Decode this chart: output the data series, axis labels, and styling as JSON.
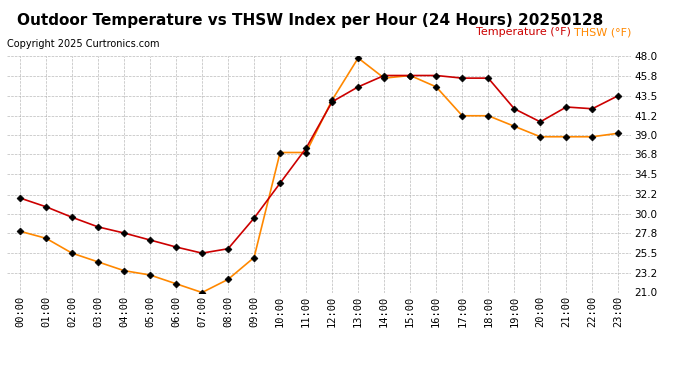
{
  "title": "Outdoor Temperature vs THSW Index per Hour (24 Hours) 20250128",
  "copyright": "Copyright 2025 Curtronics.com",
  "legend_thsw": "THSW (°F)",
  "legend_temp": "Temperature (°F)",
  "hours": [
    0,
    1,
    2,
    3,
    4,
    5,
    6,
    7,
    8,
    9,
    10,
    11,
    12,
    13,
    14,
    15,
    16,
    17,
    18,
    19,
    20,
    21,
    22,
    23
  ],
  "temperature": [
    31.8,
    30.8,
    29.6,
    28.5,
    27.8,
    27.0,
    26.2,
    25.5,
    26.0,
    29.5,
    33.5,
    37.5,
    42.8,
    44.5,
    45.8,
    45.8,
    45.8,
    45.5,
    45.5,
    42.0,
    40.5,
    42.2,
    42.0,
    43.5
  ],
  "thsw": [
    28.0,
    27.2,
    25.5,
    24.5,
    23.5,
    23.0,
    22.0,
    21.0,
    22.5,
    25.0,
    37.0,
    37.0,
    43.0,
    47.8,
    45.5,
    45.8,
    44.5,
    41.2,
    41.2,
    40.0,
    38.8,
    38.8,
    38.8,
    39.2
  ],
  "ylim": [
    21.0,
    48.0
  ],
  "yticks": [
    21.0,
    23.2,
    25.5,
    27.8,
    30.0,
    32.2,
    34.5,
    36.8,
    39.0,
    41.2,
    43.5,
    45.8,
    48.0
  ],
  "temp_color": "#cc0000",
  "thsw_color": "#ff8800",
  "title_fontsize": 11,
  "copyright_fontsize": 7,
  "legend_fontsize": 8,
  "axis_fontsize": 7.5,
  "bg_color": "#ffffff",
  "grid_color": "#aaaaaa",
  "marker": "D",
  "marker_size": 3.5,
  "linewidth": 1.2
}
